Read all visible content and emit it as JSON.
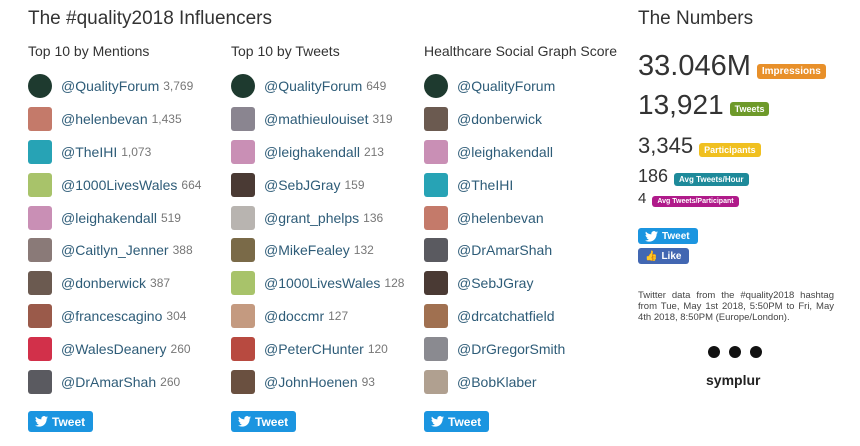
{
  "header": {
    "title": "The #quality2018 Influencers"
  },
  "columns": [
    {
      "heading": "Top 10 by Mentions",
      "tweet_label": "Tweet",
      "items": [
        {
          "handle": "@QualityForum",
          "count": "3,769",
          "avatar": "#1e3a2f"
        },
        {
          "handle": "@helenbevan",
          "count": "1,435",
          "avatar": "#c47a6a"
        },
        {
          "handle": "@TheIHI",
          "count": "1,073",
          "avatar": "#27a3b5"
        },
        {
          "handle": "@1000LivesWales",
          "count": "664",
          "avatar": "#a8c36a"
        },
        {
          "handle": "@leighakendall",
          "count": "519",
          "avatar": "#c98fb5"
        },
        {
          "handle": "@Caitlyn_Jenner",
          "count": "388",
          "avatar": "#8a7a78"
        },
        {
          "handle": "@donberwick",
          "count": "387",
          "avatar": "#6b5a50"
        },
        {
          "handle": "@francescagino",
          "count": "304",
          "avatar": "#9a5a4a"
        },
        {
          "handle": "@WalesDeanery",
          "count": "260",
          "avatar": "#d2304a"
        },
        {
          "handle": "@DrAmarShah",
          "count": "260",
          "avatar": "#5a5a60"
        }
      ]
    },
    {
      "heading": "Top 10 by Tweets",
      "tweet_label": "Tweet",
      "items": [
        {
          "handle": "@QualityForum",
          "count": "649",
          "avatar": "#1e3a2f"
        },
        {
          "handle": "@mathieulouiset",
          "count": "319",
          "avatar": "#8a8590"
        },
        {
          "handle": "@leighakendall",
          "count": "213",
          "avatar": "#c98fb5"
        },
        {
          "handle": "@SebJGray",
          "count": "159",
          "avatar": "#4a3a34"
        },
        {
          "handle": "@grant_phelps",
          "count": "136",
          "avatar": "#b8b4b0"
        },
        {
          "handle": "@MikeFealey",
          "count": "132",
          "avatar": "#7a6a48"
        },
        {
          "handle": "@1000LivesWales",
          "count": "128",
          "avatar": "#a8c36a"
        },
        {
          "handle": "@doccmr",
          "count": "127",
          "avatar": "#c49a80"
        },
        {
          "handle": "@PeterCHunter",
          "count": "120",
          "avatar": "#b84a40"
        },
        {
          "handle": "@JohnHoenen",
          "count": "93",
          "avatar": "#6a5040"
        }
      ]
    },
    {
      "heading": "Healthcare Social Graph Score",
      "tweet_label": "Tweet",
      "items": [
        {
          "handle": "@QualityForum",
          "avatar": "#1e3a2f"
        },
        {
          "handle": "@donberwick",
          "avatar": "#6b5a50"
        },
        {
          "handle": "@leighakendall",
          "avatar": "#c98fb5"
        },
        {
          "handle": "@TheIHI",
          "avatar": "#27a3b5"
        },
        {
          "handle": "@helenbevan",
          "avatar": "#c47a6a"
        },
        {
          "handle": "@DrAmarShah",
          "avatar": "#5a5a60"
        },
        {
          "handle": "@SebJGray",
          "avatar": "#4a3a34"
        },
        {
          "handle": "@drcatchatfield",
          "avatar": "#a07050"
        },
        {
          "handle": "@DrGregorSmith",
          "avatar": "#8a8a90"
        },
        {
          "handle": "@BobKlaber",
          "avatar": "#b0a090"
        }
      ]
    }
  ],
  "numbers": {
    "title": "The Numbers",
    "stats": [
      {
        "value": "33.046M",
        "label": "Impressions",
        "color": "#e8902a"
      },
      {
        "value": "13,921",
        "label": "Tweets",
        "color": "#6e9a2a"
      },
      {
        "value": "3,345",
        "label": "Participants",
        "color": "#f0c020"
      },
      {
        "value": "186",
        "label": "Avg Tweets/Hour",
        "color": "#1e8a9a"
      },
      {
        "value": "4",
        "label": "Avg Tweets/Participant",
        "color": "#b01a8a"
      }
    ],
    "tweet_label": "Tweet",
    "like_label": "Like",
    "note": "Twitter data from the #quality2018 hashtag from Tue, May 1st 2018, 5:50PM to Fri, May 4th 2018, 8:50PM (Europe/London).",
    "logo": "symplur"
  }
}
